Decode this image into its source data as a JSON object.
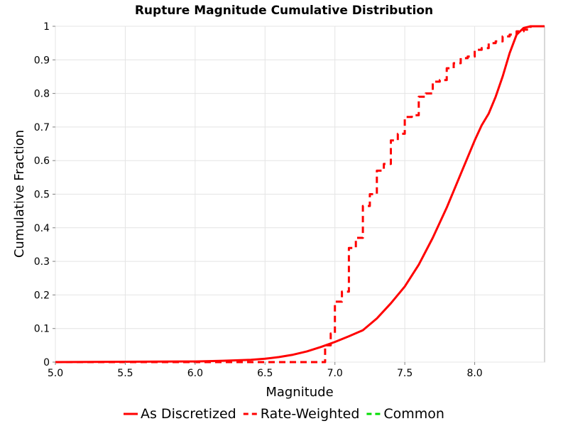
{
  "chart_data": {
    "type": "line",
    "title": "Rupture Magnitude Cumulative Distribution",
    "xlabel": "Magnitude",
    "ylabel": "Cumulative Fraction",
    "xlim": [
      5.0,
      8.5
    ],
    "ylim": [
      0,
      1
    ],
    "x_ticks": [
      "5.0",
      "5.5",
      "6.0",
      "6.5",
      "7.0",
      "7.5",
      "8.0"
    ],
    "x_tick_values": [
      5.0,
      5.5,
      6.0,
      6.5,
      7.0,
      7.5,
      8.0
    ],
    "y_ticks": [
      "0",
      "0.1",
      "0.2",
      "0.3",
      "0.4",
      "0.5",
      "0.6",
      "0.7",
      "0.8",
      "0.9",
      "1"
    ],
    "y_tick_values": [
      0,
      0.1,
      0.2,
      0.3,
      0.4,
      0.5,
      0.6,
      0.7,
      0.8,
      0.9,
      1.0
    ],
    "grid": true,
    "legend_position": "bottom",
    "series": [
      {
        "name": "As Discretized",
        "color": "#ff0000",
        "dash": "solid",
        "step": false,
        "x": [
          5.0,
          5.5,
          6.0,
          6.2,
          6.4,
          6.5,
          6.6,
          6.7,
          6.8,
          6.9,
          7.0,
          7.1,
          7.2,
          7.3,
          7.4,
          7.5,
          7.6,
          7.7,
          7.8,
          7.9,
          8.0,
          8.05,
          8.1,
          8.15,
          8.2,
          8.25,
          8.3,
          8.35,
          8.4,
          8.45,
          8.5
        ],
        "y": [
          0.0,
          0.001,
          0.002,
          0.004,
          0.007,
          0.01,
          0.015,
          0.022,
          0.032,
          0.045,
          0.06,
          0.077,
          0.095,
          0.13,
          0.175,
          0.225,
          0.29,
          0.37,
          0.46,
          0.56,
          0.66,
          0.705,
          0.74,
          0.79,
          0.85,
          0.92,
          0.975,
          0.995,
          1.0,
          1.0,
          1.0
        ]
      },
      {
        "name": "Rate-Weighted",
        "color": "#ff0000",
        "dash": "dashed",
        "step": true,
        "x": [
          5.0,
          6.9,
          6.93,
          6.97,
          7.0,
          7.05,
          7.1,
          7.15,
          7.2,
          7.25,
          7.3,
          7.35,
          7.4,
          7.45,
          7.5,
          7.55,
          7.6,
          7.65,
          7.7,
          7.75,
          7.8,
          7.85,
          7.9,
          7.95,
          8.0,
          8.05,
          8.1,
          8.15,
          8.2,
          8.25,
          8.3,
          8.35,
          8.4,
          8.45,
          8.5
        ],
        "y": [
          0.0,
          0.0,
          0.05,
          0.085,
          0.18,
          0.21,
          0.34,
          0.37,
          0.465,
          0.5,
          0.57,
          0.59,
          0.66,
          0.68,
          0.73,
          0.735,
          0.79,
          0.8,
          0.835,
          0.84,
          0.875,
          0.89,
          0.905,
          0.91,
          0.93,
          0.935,
          0.95,
          0.955,
          0.97,
          0.975,
          0.985,
          0.99,
          1.0,
          1.0,
          1.0
        ]
      },
      {
        "name": "Common",
        "color": "#00dd00",
        "dash": "dashed",
        "step": false,
        "x": [],
        "y": []
      }
    ]
  }
}
